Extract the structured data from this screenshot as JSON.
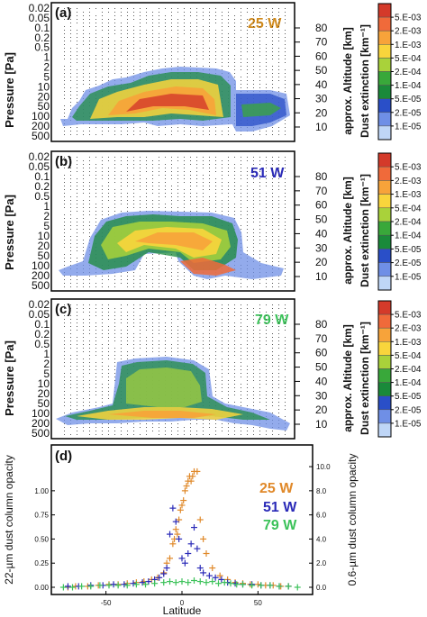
{
  "chart_data": [
    {
      "type": "heatmap",
      "panel": "(a)",
      "longitude": "25 W",
      "longitude_color": "#d08a1c",
      "ylabel": "Pressure [Pa]",
      "yticks": [
        "0.02",
        "0.05",
        "0.1",
        "0.2",
        "0.5",
        "1",
        "2",
        "5",
        "10",
        "20",
        "50",
        "100",
        "200",
        "500"
      ],
      "altlabel": "approx. Altitude [km]",
      "altticks": [
        "80",
        "70",
        "60",
        "50",
        "40",
        "30",
        "20",
        "10"
      ],
      "cbar_title": "Dust extinction [km⁻¹]",
      "cbar_labels": [
        "5.E-03",
        "2.E-03",
        "1.E-03",
        "5.E-04",
        "2.E-04",
        "1.E-04",
        "5.E-05",
        "2.E-05",
        "1.E-05"
      ],
      "cbar_colors": [
        "#d43a2a",
        "#f06a3a",
        "#f7a33a",
        "#f9d53c",
        "#a9d23a",
        "#39a83a",
        "#1a8a3a",
        "#2a4fc8",
        "#6f8fe6",
        "#bfd6f7"
      ]
    },
    {
      "type": "heatmap",
      "panel": "(b)",
      "longitude": "51 W",
      "longitude_color": "#2b2bb8",
      "ylabel": "Pressure [Pa]",
      "yticks": [
        "0.02",
        "0.05",
        "0.1",
        "0.2",
        "0.5",
        "1",
        "2",
        "5",
        "10",
        "20",
        "50",
        "100",
        "200",
        "500"
      ],
      "altlabel": "approx. Altitude [km]",
      "altticks": [
        "80",
        "70",
        "60",
        "50",
        "40",
        "30",
        "20",
        "10"
      ],
      "cbar_title": "Dust extinction [km⁻¹]",
      "cbar_labels": [
        "5.E-03",
        "2.E-03",
        "1.E-03",
        "5.E-04",
        "2.E-04",
        "1.E-04",
        "5.E-05",
        "2.E-05",
        "1.E-05"
      ],
      "cbar_colors": [
        "#d43a2a",
        "#f06a3a",
        "#f7a33a",
        "#f9d53c",
        "#a9d23a",
        "#39a83a",
        "#1a8a3a",
        "#2a4fc8",
        "#6f8fe6",
        "#bfd6f7"
      ]
    },
    {
      "type": "heatmap",
      "panel": "(c)",
      "longitude": "79 W",
      "longitude_color": "#3cc25a",
      "ylabel": "Pressure [Pa]",
      "yticks": [
        "0.02",
        "0.05",
        "0.1",
        "0.2",
        "0.5",
        "1",
        "2",
        "5",
        "10",
        "20",
        "50",
        "100",
        "200",
        "500"
      ],
      "altlabel": "approx. Altitude [km]",
      "altticks": [
        "80",
        "70",
        "60",
        "50",
        "40",
        "30",
        "20",
        "10"
      ],
      "cbar_title": "Dust extinction [km⁻¹]",
      "cbar_labels": [
        "5.E-03",
        "2.E-03",
        "1.E-03",
        "5.E-04",
        "2.E-04",
        "1.E-04",
        "5.E-05",
        "2.E-05",
        "1.E-05"
      ],
      "cbar_colors": [
        "#d43a2a",
        "#f06a3a",
        "#f7a33a",
        "#f9d53c",
        "#a9d23a",
        "#39a83a",
        "#1a8a3a",
        "#2a4fc8",
        "#6f8fe6",
        "#bfd6f7"
      ]
    },
    {
      "type": "scatter",
      "panel": "(d)",
      "xlabel": "Latitude",
      "ylabel": "22-µm dust column opacity",
      "y2label": "0.6-µm dust column opacity",
      "xlim": [
        -80,
        80
      ],
      "ylim": [
        0,
        1.4
      ],
      "y2lim": [
        0,
        11.2
      ],
      "xticks": [
        "-50",
        "0",
        "50"
      ],
      "yticks": [
        "0.00",
        "0.25",
        "0.50",
        "0.75",
        "1.00"
      ],
      "y2ticks": [
        "0.0",
        "2.0",
        "4.0",
        "6.0",
        "8.0",
        "10.0"
      ],
      "series": [
        {
          "name": "25 W",
          "color": "#e0892a",
          "x": [
            -75,
            -70,
            -62,
            -55,
            -48,
            -42,
            -36,
            -30,
            -25,
            -20,
            -16,
            -12,
            -10,
            -8,
            -6,
            -5,
            -4,
            -3,
            -2,
            -1,
            0,
            1,
            2,
            3,
            4,
            5,
            6,
            7,
            8,
            10,
            12,
            14,
            16,
            20,
            25,
            30,
            35,
            40,
            45,
            50,
            55,
            60,
            65,
            70
          ],
          "y": [
            0.0,
            0.01,
            0.01,
            0.02,
            0.03,
            0.03,
            0.04,
            0.05,
            0.06,
            0.08,
            0.1,
            0.15,
            0.25,
            0.3,
            0.45,
            0.5,
            0.6,
            0.55,
            0.7,
            0.8,
            0.85,
            0.9,
            1.0,
            1.05,
            1.1,
            1.15,
            1.1,
            1.15,
            1.2,
            1.2,
            0.7,
            0.5,
            0.35,
            0.2,
            0.12,
            0.08,
            0.05,
            0.04,
            0.03,
            0.03,
            0.02,
            0.02,
            0.01,
            0.01
          ]
        },
        {
          "name": "51 W",
          "color": "#2b2bb8",
          "x": [
            -75,
            -68,
            -60,
            -52,
            -45,
            -38,
            -32,
            -26,
            -22,
            -18,
            -15,
            -12,
            -10,
            -8,
            -6,
            -4,
            -2,
            0,
            2,
            4,
            6,
            8,
            10,
            12,
            14,
            18,
            22,
            26,
            30,
            35,
            40,
            46,
            52,
            58,
            64,
            70
          ],
          "y": [
            0.01,
            0.01,
            0.02,
            0.02,
            0.03,
            0.03,
            0.04,
            0.05,
            0.06,
            0.08,
            0.1,
            0.14,
            0.2,
            0.55,
            0.82,
            0.68,
            0.5,
            0.3,
            0.25,
            0.35,
            0.45,
            0.62,
            0.4,
            0.2,
            0.15,
            0.12,
            0.1,
            0.08,
            0.05,
            0.04,
            0.03,
            0.03,
            0.02,
            0.02,
            0.01,
            0.01
          ]
        },
        {
          "name": "79 W",
          "color": "#3cc25a",
          "x": [
            -78,
            -72,
            -66,
            -60,
            -54,
            -48,
            -42,
            -36,
            -30,
            -24,
            -18,
            -12,
            -8,
            -4,
            0,
            4,
            8,
            12,
            16,
            20,
            24,
            28,
            32,
            36,
            40,
            46,
            52,
            58,
            64,
            70,
            76
          ],
          "y": [
            0.0,
            0.0,
            0.01,
            0.01,
            0.02,
            0.02,
            0.02,
            0.02,
            0.03,
            0.03,
            0.04,
            0.05,
            0.06,
            0.05,
            0.06,
            0.05,
            0.07,
            0.06,
            0.05,
            0.06,
            0.04,
            0.05,
            0.04,
            0.03,
            0.03,
            0.02,
            0.02,
            0.02,
            0.01,
            0.01,
            0.0
          ]
        }
      ]
    }
  ]
}
